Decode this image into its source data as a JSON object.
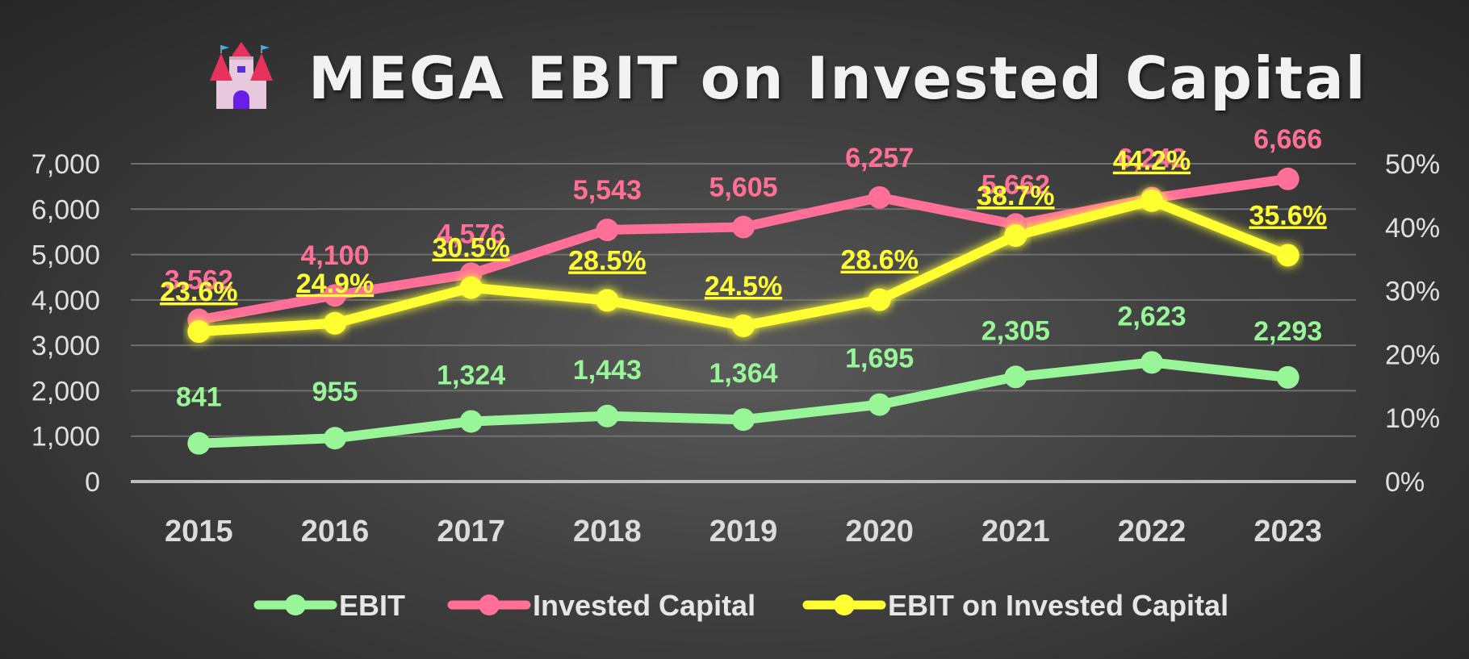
{
  "chart_data": {
    "type": "line",
    "title": "MEGA EBIT on Invested Capital",
    "title_icon": "castle-icon",
    "categories": [
      "2015",
      "2016",
      "2017",
      "2018",
      "2019",
      "2020",
      "2021",
      "2022",
      "2023"
    ],
    "y_left": {
      "ticks": [
        "0",
        "1,000",
        "2,000",
        "3,000",
        "4,000",
        "5,000",
        "6,000",
        "7,000"
      ],
      "ylim": [
        0,
        7000
      ]
    },
    "y_right": {
      "ticks": [
        "0%",
        "10%",
        "20%",
        "30%",
        "40%",
        "50%"
      ],
      "ylim": [
        0,
        0.5
      ]
    },
    "grid": true,
    "legend_position": "bottom",
    "series": [
      {
        "name": "EBIT",
        "axis": "left",
        "color": "#98f598",
        "values": [
          841,
          955,
          1324,
          1443,
          1364,
          1695,
          2305,
          2623,
          2293
        ],
        "labels": [
          "841",
          "955",
          "1,324",
          "1,443",
          "1,364",
          "1,695",
          "2,305",
          "2,623",
          "2,293"
        ]
      },
      {
        "name": "Invested Capital",
        "axis": "left",
        "color": "#ff6f98",
        "values": [
          3562,
          4100,
          4576,
          5543,
          5605,
          6257,
          5662,
          6242,
          6666
        ],
        "labels": [
          "3,562",
          "4,100",
          "4,576",
          "5,543",
          "5,605",
          "6,257",
          "5,662",
          "6,242",
          "6,666"
        ]
      },
      {
        "name": "EBIT on Invested Capital",
        "axis": "right",
        "color": "#ffff33",
        "values": [
          0.236,
          0.249,
          0.305,
          0.285,
          0.245,
          0.286,
          0.387,
          0.442,
          0.356
        ],
        "labels": [
          "23.6%",
          "24.9%",
          "30.5%",
          "28.5%",
          "24.5%",
          "28.6%",
          "38.7%",
          "44.2%",
          "35.6%"
        ]
      }
    ]
  }
}
